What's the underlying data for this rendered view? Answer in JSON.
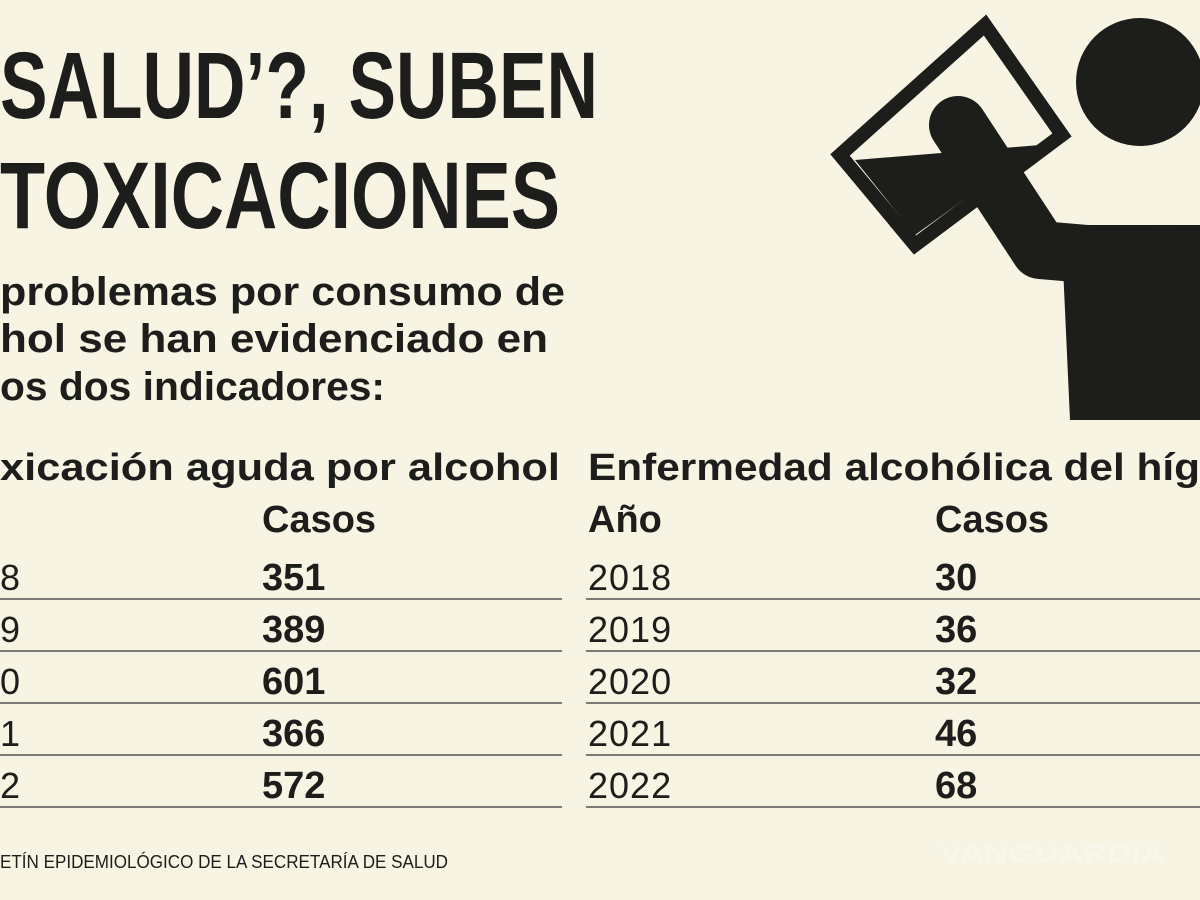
{
  "header": {
    "title_lines": [
      "SALUD’?, SUBEN",
      "TOXICACIONES"
    ],
    "subtitle_lines": [
      "problemas por consumo de",
      "hol se han evidenciado en",
      "os dos indicadores:"
    ]
  },
  "tables": [
    {
      "title": "xicación aguda por alcohol",
      "columns": [
        "Casos"
      ],
      "rows": [
        [
          "8",
          351
        ],
        [
          "9",
          389
        ],
        [
          "0",
          601
        ],
        [
          "1",
          366
        ],
        [
          "2",
          572
        ]
      ]
    },
    {
      "title": "Enfermedad alcohólica del híg",
      "columns": [
        "Año",
        "Casos"
      ],
      "rows": [
        [
          "2018",
          30
        ],
        [
          "2019",
          36
        ],
        [
          "2020",
          32
        ],
        [
          "2021",
          46
        ],
        [
          "2022",
          68
        ]
      ]
    }
  ],
  "source": "ETÍN EPIDEMIOLÓGICO DE LA SECRETARÍA DE SALUD",
  "watermark": "VANGUARDIA"
}
